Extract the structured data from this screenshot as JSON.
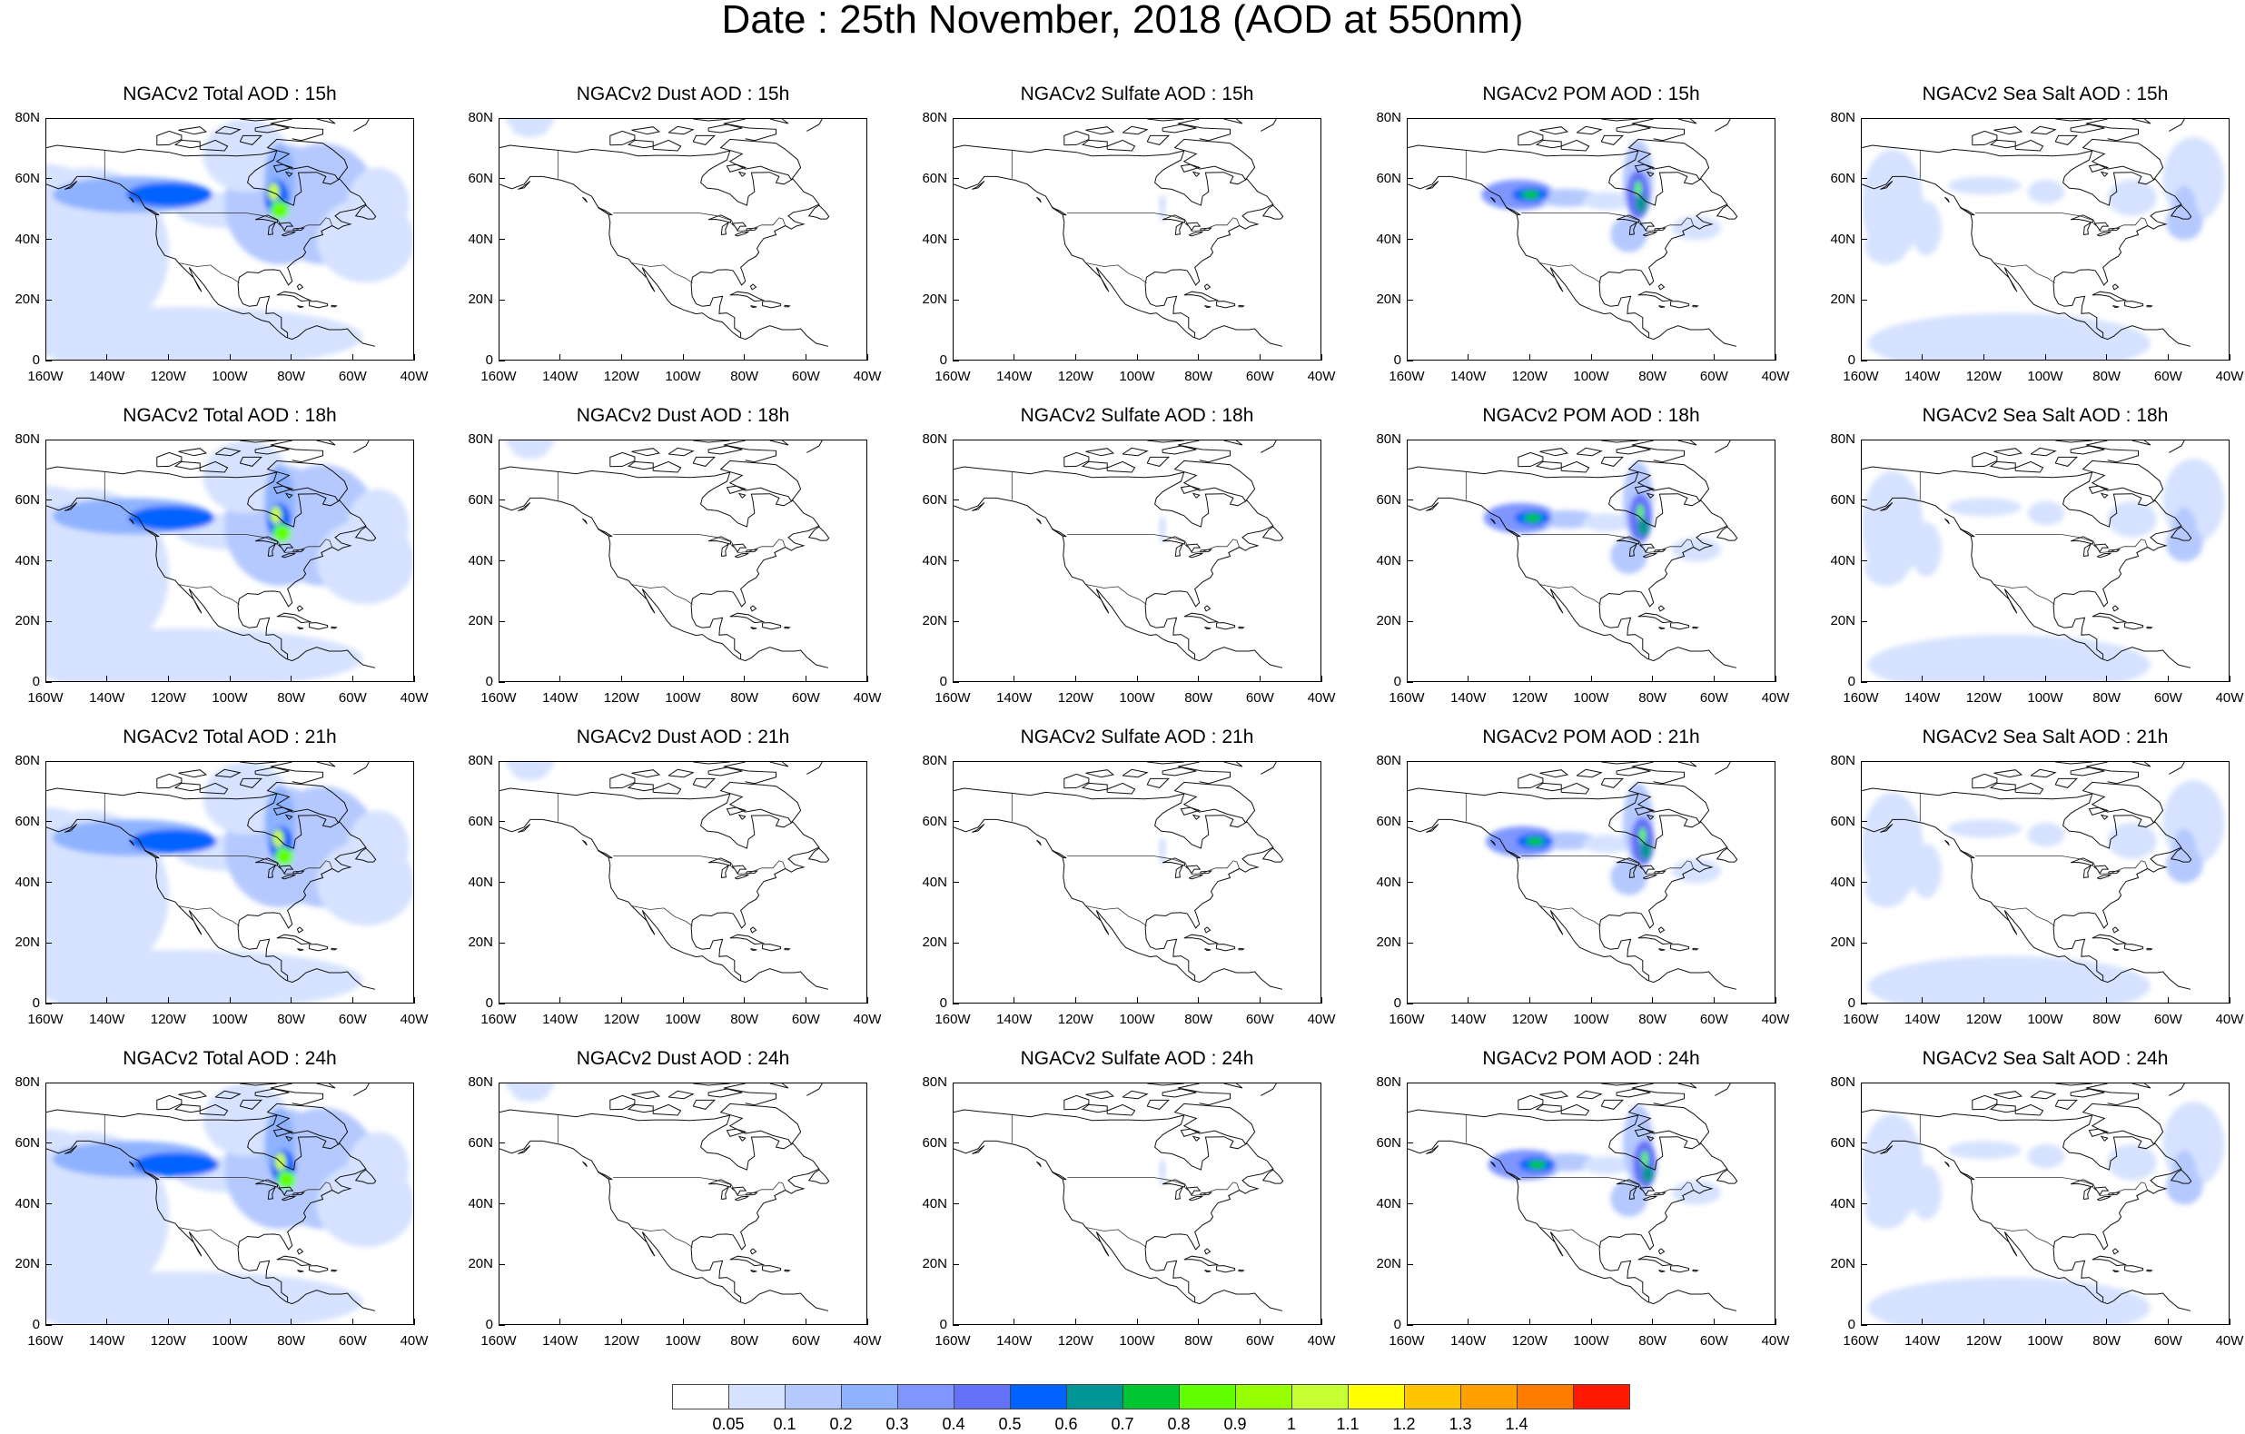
{
  "title": "Date : 25th November, 2018 (AOD at 550nm)",
  "panel_titles": [
    [
      "NGACv2 Total AOD : 15h",
      "NGACv2 Dust AOD : 15h",
      "NGACv2 Sulfate AOD : 15h",
      "NGACv2 POM AOD : 15h",
      "NGACv2 Sea Salt AOD : 15h"
    ],
    [
      "NGACv2 Total AOD : 18h",
      "NGACv2 Dust AOD : 18h",
      "NGACv2 Sulfate AOD : 18h",
      "NGACv2 POM AOD : 18h",
      "NGACv2 Sea Salt AOD : 18h"
    ],
    [
      "NGACv2 Total AOD : 21h",
      "NGACv2 Dust AOD : 21h",
      "NGACv2 Sulfate AOD : 21h",
      "NGACv2 POM AOD : 21h",
      "NGACv2 Sea Salt AOD : 21h"
    ],
    [
      "NGACv2 Total AOD : 24h",
      "NGACv2 Dust AOD : 24h",
      "NGACv2 Sulfate AOD : 24h",
      "NGACv2 POM AOD : 24h",
      "NGACv2 Sea Salt  AOD : 24h"
    ]
  ],
  "lon_ticks": [
    "160W",
    "140W",
    "120W",
    "100W",
    "80W",
    "60W",
    "40W"
  ],
  "lat_ticks": [
    "80N",
    "60N",
    "40N",
    "20N",
    "0"
  ],
  "colorbar": {
    "labels": [
      "0.05",
      "0.1",
      "0.2",
      "0.3",
      "0.4",
      "0.5",
      "0.6",
      "0.7",
      "0.8",
      "0.9",
      "1",
      "1.1",
      "1.2",
      "1.3",
      "1.4"
    ],
    "colors": [
      "#ffffff",
      "#d6e2ff",
      "#b5c9ff",
      "#8eb2ff",
      "#7f96ff",
      "#6370f8",
      "#0063ff",
      "#009696",
      "#00c633",
      "#63ff00",
      "#96ff00",
      "#c6ff33",
      "#ffff00",
      "#ffc600",
      "#ffa000",
      "#ff7c00",
      "#ff1900"
    ]
  }
}
